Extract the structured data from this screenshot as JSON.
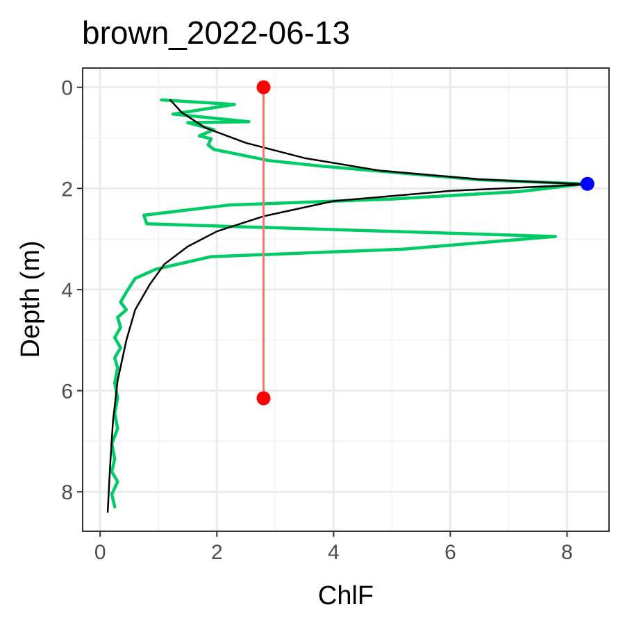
{
  "chart_data": {
    "type": "line",
    "title": "brown_2022-06-13",
    "xlabel": "ChlF",
    "ylabel": "Depth (m)",
    "xlim": [
      -0.3,
      8.72
    ],
    "ylim": [
      8.78,
      -0.38
    ],
    "y_reversed": true,
    "x_ticks": [
      "0",
      "2",
      "4",
      "6",
      "8"
    ],
    "y_ticks": [
      "0",
      "2",
      "4",
      "6",
      "8"
    ],
    "grid": true,
    "legend": "none",
    "series": [
      {
        "kind": "profile",
        "color": "#00CC66",
        "points": [
          [
            1.05,
            0.25
          ],
          [
            2.3,
            0.34
          ],
          [
            1.25,
            0.53
          ],
          [
            2.55,
            0.68
          ],
          [
            1.5,
            0.7
          ],
          [
            1.95,
            0.84
          ],
          [
            1.7,
            0.96
          ],
          [
            1.9,
            1.02
          ],
          [
            1.85,
            1.14
          ],
          [
            1.95,
            1.23
          ],
          [
            2.9,
            1.45
          ],
          [
            3.8,
            1.56
          ],
          [
            6.5,
            1.83
          ],
          [
            8.3,
            1.91
          ],
          [
            7.2,
            2.06
          ],
          [
            5.0,
            2.21
          ],
          [
            2.2,
            2.33
          ],
          [
            0.75,
            2.53
          ],
          [
            0.8,
            2.7
          ],
          [
            7.8,
            2.95
          ],
          [
            5.2,
            3.2
          ],
          [
            1.9,
            3.35
          ],
          [
            0.95,
            3.6
          ],
          [
            0.6,
            3.78
          ],
          [
            0.45,
            4.05
          ],
          [
            0.35,
            4.25
          ],
          [
            0.45,
            4.4
          ],
          [
            0.3,
            4.55
          ],
          [
            0.35,
            4.75
          ],
          [
            0.25,
            4.95
          ],
          [
            0.35,
            5.15
          ],
          [
            0.25,
            5.35
          ],
          [
            0.3,
            5.55
          ],
          [
            0.25,
            5.85
          ],
          [
            0.3,
            6.15
          ],
          [
            0.25,
            6.45
          ],
          [
            0.3,
            6.75
          ],
          [
            0.2,
            7.05
          ],
          [
            0.25,
            7.35
          ],
          [
            0.2,
            7.6
          ],
          [
            0.3,
            7.8
          ],
          [
            0.2,
            8.05
          ],
          [
            0.25,
            8.3
          ]
        ]
      },
      {
        "kind": "fit",
        "color": "#000000",
        "points": [
          [
            1.2,
            0.25
          ],
          [
            1.4,
            0.5
          ],
          [
            1.8,
            0.8
          ],
          [
            2.5,
            1.1
          ],
          [
            3.5,
            1.4
          ],
          [
            4.8,
            1.65
          ],
          [
            6.5,
            1.82
          ],
          [
            8.35,
            1.92
          ],
          [
            6.0,
            2.05
          ],
          [
            4.0,
            2.25
          ],
          [
            2.8,
            2.55
          ],
          [
            2.0,
            2.85
          ],
          [
            1.5,
            3.15
          ],
          [
            1.1,
            3.5
          ],
          [
            0.85,
            3.9
          ],
          [
            0.6,
            4.4
          ],
          [
            0.45,
            5.0
          ],
          [
            0.3,
            5.8
          ],
          [
            0.22,
            6.6
          ],
          [
            0.17,
            7.5
          ],
          [
            0.13,
            8.4
          ]
        ]
      },
      {
        "kind": "range-line",
        "color": "#F8766D",
        "points": [
          [
            2.8,
            0.0
          ],
          [
            2.8,
            6.15
          ]
        ]
      }
    ],
    "markers": [
      {
        "x": 2.8,
        "y": 0.0,
        "color": "#FF0000"
      },
      {
        "x": 2.8,
        "y": 6.15,
        "color": "#FF0000"
      },
      {
        "x": 8.35,
        "y": 1.91,
        "color": "#0000FF"
      }
    ]
  }
}
